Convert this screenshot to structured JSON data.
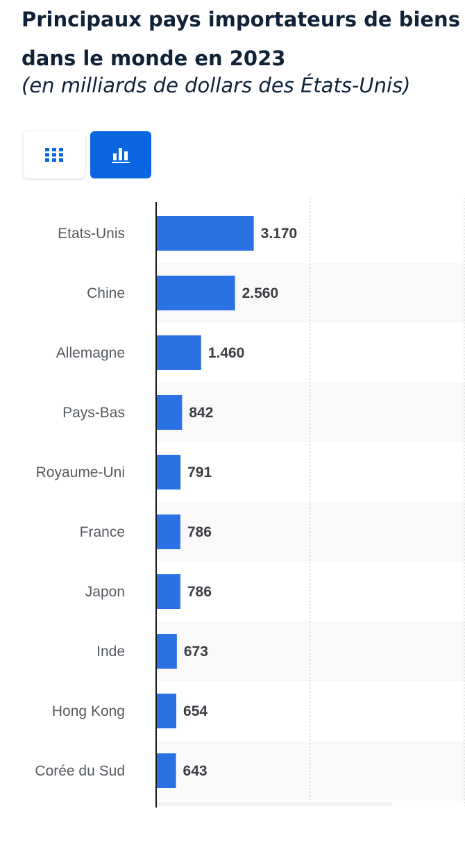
{
  "title": "Principaux pays importateurs de biens dans le monde en 2023",
  "subtitle": "(en milliards de dollars des États-Unis)",
  "toolbar": {
    "table_icon": "grid-icon",
    "chart_icon": "bar-chart-icon",
    "active_color": "#0a66e0"
  },
  "chart_data": {
    "type": "bar",
    "orientation": "horizontal",
    "title": "Principaux pays importateurs de biens dans le monde en 2023",
    "subtitle": "(en milliards de dollars des États-Unis)",
    "categories": [
      "Etats-Unis",
      "Chine",
      "Allemagne",
      "Pays-Bas",
      "Royaume-Uni",
      "France",
      "Japon",
      "Inde",
      "Hong Kong",
      "Corée du Sud"
    ],
    "values": [
      3170,
      2560,
      1460,
      842,
      791,
      786,
      786,
      673,
      654,
      643
    ],
    "value_labels": [
      "3.170",
      "2.560",
      "1.460",
      "842",
      "791",
      "786",
      "786",
      "673",
      "654",
      "643"
    ],
    "xlim": [
      0,
      32000
    ],
    "grid": true,
    "bar_color": "#2a72e3",
    "stripe_color": "#f9f9f9"
  }
}
